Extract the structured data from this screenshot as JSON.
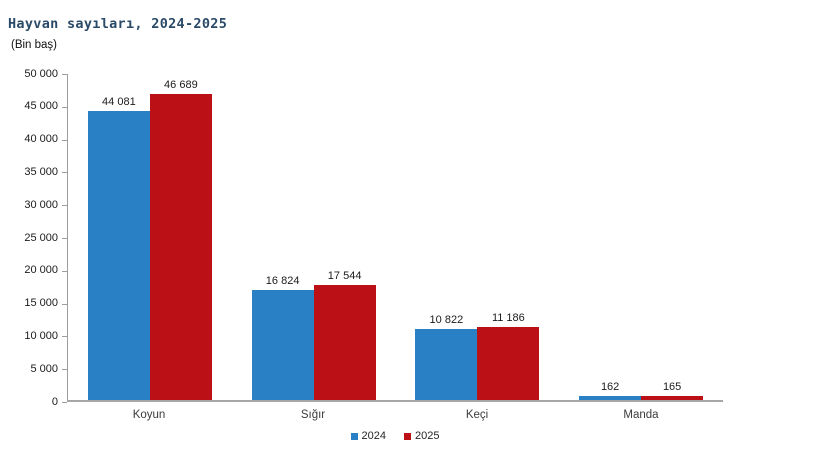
{
  "chart_data": {
    "type": "bar",
    "title": "Hayvan sayıları, 2024-2025",
    "subtitle": "(Bin baş)",
    "categories": [
      "Koyun",
      "Sığır",
      "Keçi",
      "Manda"
    ],
    "series": [
      {
        "name": "2024",
        "color": "#2980c4",
        "values": [
          44081,
          16824,
          10822,
          162
        ],
        "labels": [
          "44 081",
          "16 824",
          "10 822",
          "162"
        ]
      },
      {
        "name": "2025",
        "color": "#bb1016",
        "values": [
          46689,
          17544,
          11186,
          165
        ],
        "labels": [
          "46 689",
          "17 544",
          "11 186",
          "165"
        ]
      }
    ],
    "ylim": [
      0,
      50000
    ],
    "ytick_step": 5000,
    "ytick_labels": [
      "0",
      "5 000",
      "10 000",
      "15 000",
      "20 000",
      "25 000",
      "30 000",
      "35 000",
      "40 000",
      "45 000",
      "50 000"
    ],
    "grid": false,
    "legend_position": "bottom-center",
    "colors": {
      "axis": "#a6a6a6",
      "title_text": "#2a4a68",
      "label_text": "#1b1b1b"
    }
  }
}
